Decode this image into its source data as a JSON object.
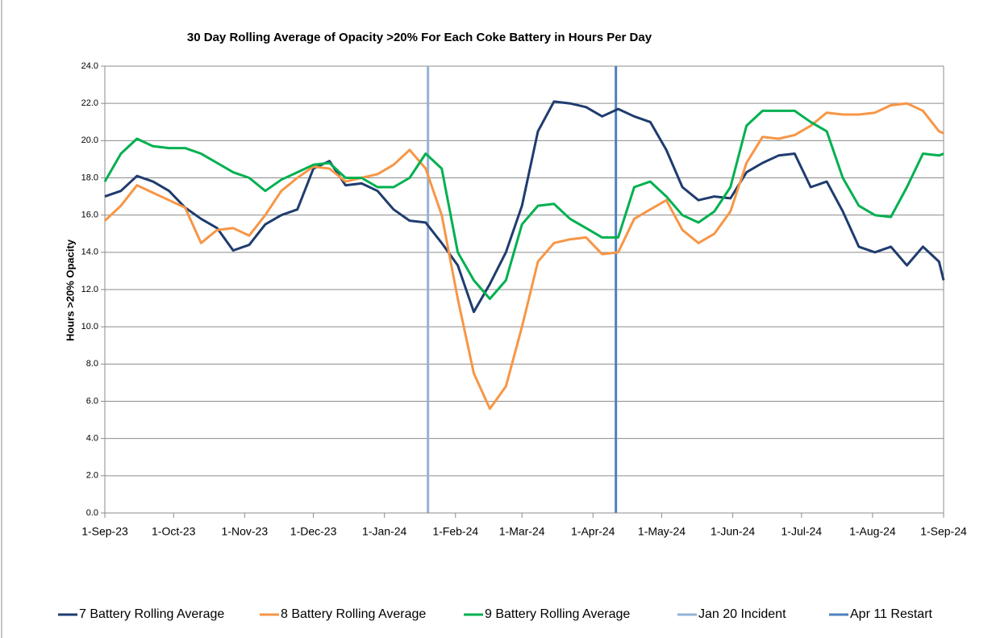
{
  "chart_data": {
    "type": "line",
    "title": "30 Day Rolling Average of Opacity >20% For Each Coke Battery in Hours Per Day",
    "y_label": "Hours >20% Opacity",
    "x": [
      "2023-09-01",
      "2023-09-08",
      "2023-09-15",
      "2023-09-22",
      "2023-09-29",
      "2023-10-06",
      "2023-10-13",
      "2023-10-20",
      "2023-10-27",
      "2023-11-03",
      "2023-11-10",
      "2023-11-17",
      "2023-11-24",
      "2023-12-01",
      "2023-12-08",
      "2023-12-15",
      "2023-12-22",
      "2023-12-29",
      "2024-01-05",
      "2024-01-12",
      "2024-01-19",
      "2024-01-26",
      "2024-02-02",
      "2024-02-09",
      "2024-02-16",
      "2024-02-23",
      "2024-03-01",
      "2024-03-08",
      "2024-03-15",
      "2024-03-22",
      "2024-03-29",
      "2024-04-05",
      "2024-04-12",
      "2024-04-19",
      "2024-04-26",
      "2024-05-03",
      "2024-05-10",
      "2024-05-17",
      "2024-05-24",
      "2024-05-31",
      "2024-06-07",
      "2024-06-14",
      "2024-06-21",
      "2024-06-28",
      "2024-07-05",
      "2024-07-12",
      "2024-07-19",
      "2024-07-26",
      "2024-08-02",
      "2024-08-09",
      "2024-08-16",
      "2024-08-23",
      "2024-08-30",
      "2024-09-01"
    ],
    "series": [
      {
        "name": "7 Battery Rolling Average",
        "color": "#1f3c6e",
        "values": [
          17.0,
          17.3,
          18.1,
          17.8,
          17.3,
          16.4,
          15.8,
          15.3,
          14.1,
          14.4,
          15.5,
          16.0,
          16.3,
          18.5,
          18.9,
          17.6,
          17.7,
          17.3,
          16.3,
          15.7,
          15.6,
          14.5,
          13.3,
          10.8,
          12.3,
          14.0,
          16.5,
          20.5,
          22.1,
          22.0,
          21.8,
          21.3,
          21.7,
          21.3,
          21.0,
          19.5,
          17.5,
          16.8,
          17.0,
          16.9,
          18.3,
          18.8,
          19.2,
          19.3,
          17.5,
          17.8,
          16.2,
          14.3,
          14.0,
          14.3,
          13.3,
          14.3,
          13.5,
          12.5
        ]
      },
      {
        "name": "8 Battery Rolling Average",
        "color": "#f79646",
        "values": [
          15.7,
          16.5,
          17.6,
          17.2,
          16.8,
          16.4,
          14.5,
          15.2,
          15.3,
          14.9,
          16.0,
          17.3,
          18.0,
          18.6,
          18.5,
          17.8,
          18.0,
          18.2,
          18.7,
          19.5,
          18.5,
          16.0,
          11.5,
          7.5,
          5.6,
          6.8,
          10.0,
          13.5,
          14.5,
          14.7,
          14.8,
          13.9,
          14.0,
          15.8,
          16.3,
          16.8,
          15.2,
          14.5,
          15.0,
          16.2,
          18.8,
          20.2,
          20.1,
          20.3,
          20.8,
          21.5,
          21.4,
          21.4,
          21.5,
          21.9,
          22.0,
          21.6,
          20.5,
          20.4
        ]
      },
      {
        "name": "9 Battery  Rolling Average",
        "color": "#00b050",
        "values": [
          17.8,
          19.3,
          20.1,
          19.7,
          19.6,
          19.6,
          19.3,
          18.8,
          18.3,
          18.0,
          17.3,
          17.9,
          18.3,
          18.7,
          18.8,
          18.0,
          18.0,
          17.5,
          17.5,
          18.0,
          19.3,
          18.5,
          14.0,
          12.5,
          11.5,
          12.5,
          15.5,
          16.5,
          16.6,
          15.8,
          15.3,
          14.8,
          14.8,
          17.5,
          17.8,
          17.0,
          16.0,
          15.6,
          16.2,
          17.5,
          20.8,
          21.6,
          21.6,
          21.6,
          21.0,
          20.5,
          18.0,
          16.5,
          16.0,
          15.9,
          17.5,
          19.3,
          19.2,
          19.3
        ]
      }
    ],
    "markers": [
      {
        "name": "Jan 20 Incident",
        "x": "2024-01-20",
        "color": "#95b3d7"
      },
      {
        "name": "Apr 11 Restart",
        "x": "2024-04-11",
        "color": "#4f81bd"
      }
    ],
    "xlim": [
      "2023-09-01",
      "2024-09-01"
    ],
    "xticks": [
      {
        "value": "2023-09-01",
        "label": "1-Sep-23"
      },
      {
        "value": "2023-10-01",
        "label": "1-Oct-23"
      },
      {
        "value": "2023-11-01",
        "label": "1-Nov-23"
      },
      {
        "value": "2023-12-01",
        "label": "1-Dec-23"
      },
      {
        "value": "2024-01-01",
        "label": "1-Jan-24"
      },
      {
        "value": "2024-02-01",
        "label": "1-Feb-24"
      },
      {
        "value": "2024-03-01",
        "label": "1-Mar-24"
      },
      {
        "value": "2024-04-01",
        "label": "1-Apr-24"
      },
      {
        "value": "2024-05-01",
        "label": "1-May-24"
      },
      {
        "value": "2024-06-01",
        "label": "1-Jun-24"
      },
      {
        "value": "2024-07-01",
        "label": "1-Jul-24"
      },
      {
        "value": "2024-08-01",
        "label": "1-Aug-24"
      },
      {
        "value": "2024-09-01",
        "label": "1-Sep-24"
      }
    ],
    "ylim": [
      0,
      24
    ],
    "yticks": [
      {
        "value": 0,
        "label": "0.0"
      },
      {
        "value": 2,
        "label": "2.0"
      },
      {
        "value": 4,
        "label": "4.0"
      },
      {
        "value": 6,
        "label": "6.0"
      },
      {
        "value": 8,
        "label": "8.0"
      },
      {
        "value": 10,
        "label": "10.0"
      },
      {
        "value": 12,
        "label": "12.0"
      },
      {
        "value": 14,
        "label": "14.0"
      },
      {
        "value": 16,
        "label": "16.0"
      },
      {
        "value": 18,
        "label": "18.0"
      },
      {
        "value": 20,
        "label": "20.0"
      },
      {
        "value": 22,
        "label": "22.0"
      },
      {
        "value": 24,
        "label": "24.0"
      }
    ],
    "grid": true,
    "legend": "bottom"
  }
}
